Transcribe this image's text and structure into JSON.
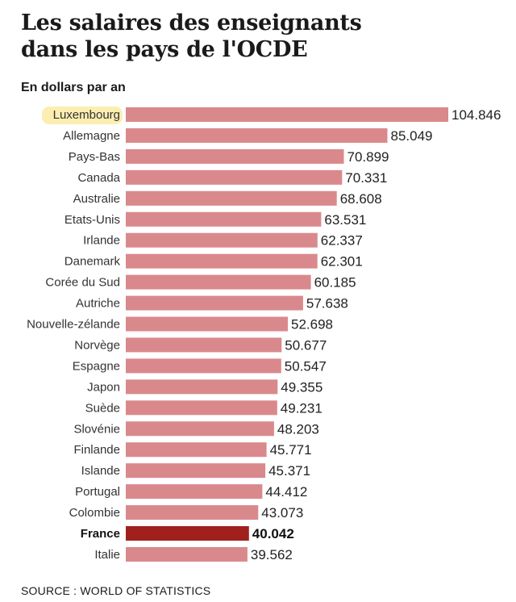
{
  "page": {
    "title_line1": "Les salaires des enseignants",
    "title_line2": "dans les pays de l'OCDE",
    "subtitle": "En dollars par an",
    "source": "SOURCE : WORLD OF STATISTICS"
  },
  "colors": {
    "bar": "#d9898c",
    "bar_highlight": "#a0201e",
    "marker": "#fbeeb0"
  },
  "chart_data": {
    "type": "bar",
    "orientation": "horizontal",
    "title": "Les salaires des enseignants dans les pays de l'OCDE",
    "unit": "En dollars par an",
    "xlim": [
      0,
      104846
    ],
    "categories": [
      "Luxembourg",
      "Allemagne",
      "Pays-Bas",
      "Canada",
      "Australie",
      "Etats-Unis",
      "Irlande",
      "Danemark",
      "Corée du Sud",
      "Autriche",
      "Nouvelle-zélande",
      "Norvège",
      "Espagne",
      "Japon",
      "Suède",
      "Slovénie",
      "Finlande",
      "Islande",
      "Portugal",
      "Colombie",
      "France",
      "Italie"
    ],
    "values": [
      104846,
      85049,
      70899,
      70331,
      68608,
      63531,
      62337,
      62301,
      60185,
      57638,
      52698,
      50677,
      50547,
      49355,
      49231,
      48203,
      45771,
      45371,
      44412,
      43073,
      40042,
      39562
    ],
    "labels": [
      "104.846",
      "85.049",
      "70.899",
      "70.331",
      "68.608",
      "63.531",
      "62.337",
      "62.301",
      "60.185",
      "57.638",
      "52.698",
      "50.677",
      "50.547",
      "49.355",
      "49.231",
      "48.203",
      "45.771",
      "45.371",
      "44.412",
      "43.073",
      "40.042",
      "39.562"
    ],
    "highlight": "France",
    "marked": "Luxembourg"
  }
}
